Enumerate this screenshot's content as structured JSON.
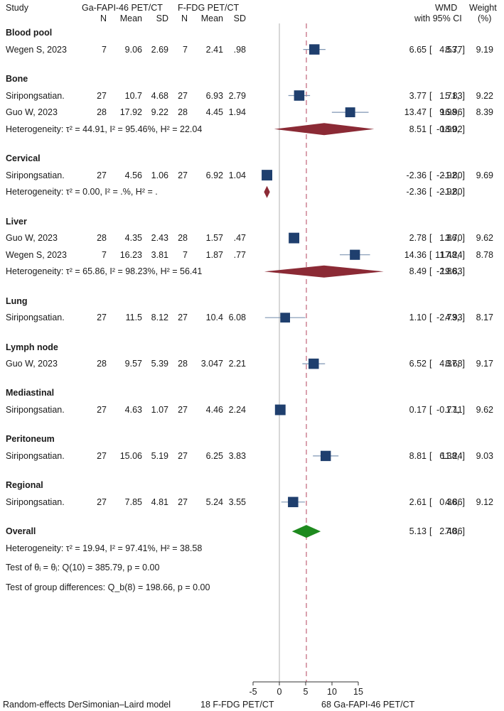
{
  "header": {
    "study": "Study",
    "fapi_group": "Ga-FAPI-46 PET/CT",
    "fdg_group": "F-FDG PET/CT",
    "n": "N",
    "mean": "Mean",
    "sd": "SD",
    "wmd": "WMD",
    "ci": "with 95% CI",
    "weight": "Weight",
    "weight_unit": "(%)"
  },
  "colors": {
    "study_square": "#1f3f6e",
    "subgroup_diamond": "#8b2a35",
    "overall_diamond": "#1e8a1e",
    "overall_line": "#d08a9a",
    "ci_line": "#7f96b3",
    "zero_line": "#b0b0b0"
  },
  "rows": [
    {
      "kind": "group",
      "label": "Blood pool"
    },
    {
      "kind": "study",
      "study": "Wegen S, 2023",
      "n1": "7",
      "mean1": "9.06",
      "sd1": "2.69",
      "n2": "7",
      "mean2": "2.41",
      "sd2": ".98",
      "est_text": "6.65",
      "lo_text": "4.53,",
      "hi_text": "8.77]",
      "weight": "9.19",
      "est": 6.65,
      "lo": 4.53,
      "hi": 8.77,
      "w": 9.19
    },
    {
      "kind": "gap"
    },
    {
      "kind": "group",
      "label": "Bone"
    },
    {
      "kind": "study",
      "study": "Siripongsatian.",
      "n1": "27",
      "mean1": "10.7",
      "sd1": "4.68",
      "n2": "27",
      "mean2": "6.93",
      "sd2": "2.79",
      "est_text": "3.77",
      "lo_text": "1.71,",
      "hi_text": "5.83]",
      "weight": "9.22",
      "est": 3.77,
      "lo": 1.71,
      "hi": 5.83,
      "w": 9.22
    },
    {
      "kind": "study",
      "study": "Guo W, 2023",
      "n1": "28",
      "mean1": "17.92",
      "sd1": "9.22",
      "n2": "28",
      "mean2": "4.45",
      "sd2": "1.94",
      "est_text": "13.47",
      "lo_text": "9.98,",
      "hi_text": "16.96]",
      "weight": "8.39",
      "est": 13.47,
      "lo": 9.98,
      "hi": 16.96,
      "w": 8.39
    },
    {
      "kind": "het",
      "text": "Heterogeneity: τ² = 44.91, I² = 95.46%, H² = 22.04",
      "est_text": "8.51",
      "lo_text": "-0.99,",
      "hi_text": "18.02]",
      "est": 8.51,
      "lo": -0.99,
      "hi": 18.02
    },
    {
      "kind": "gap"
    },
    {
      "kind": "group",
      "label": "Cervical"
    },
    {
      "kind": "study",
      "study": "Siripongsatian.",
      "n1": "27",
      "mean1": "4.56",
      "sd1": "1.06",
      "n2": "27",
      "mean2": "6.92",
      "sd2": "1.04",
      "est_text": "-2.36",
      "lo_text": "-2.92,",
      "hi_text": "-1.80]",
      "weight": "9.69",
      "est": -2.36,
      "lo": -2.92,
      "hi": -1.8,
      "w": 9.69
    },
    {
      "kind": "het",
      "text": "Heterogeneity: τ² = 0.00, I² = .%, H² = .",
      "est_text": "-2.36",
      "lo_text": "-2.92,",
      "hi_text": "-1.80]",
      "est": -2.36,
      "lo": -2.92,
      "hi": -1.8
    },
    {
      "kind": "gap"
    },
    {
      "kind": "group",
      "label": "Liver"
    },
    {
      "kind": "study",
      "study": "Guo W, 2023",
      "n1": "28",
      "mean1": "4.35",
      "sd1": "2.43",
      "n2": "28",
      "mean2": "1.57",
      "sd2": ".47",
      "est_text": "2.78",
      "lo_text": "1.86,",
      "hi_text": "3.70]",
      "weight": "9.62",
      "est": 2.78,
      "lo": 1.86,
      "hi": 3.7,
      "w": 9.62
    },
    {
      "kind": "study",
      "study": "Wegen S, 2023",
      "n1": "7",
      "mean1": "16.23",
      "sd1": "3.81",
      "n2": "7",
      "mean2": "1.87",
      "sd2": ".77",
      "est_text": "14.36",
      "lo_text": "11.48,",
      "hi_text": "17.24]",
      "weight": "8.78",
      "est": 14.36,
      "lo": 11.48,
      "hi": 17.24,
      "w": 8.78
    },
    {
      "kind": "het",
      "text": "Heterogeneity: τ² = 65.86, I² = 98.23%, H² = 56.41",
      "est_text": "8.49",
      "lo_text": "-2.86,",
      "hi_text": "19.83]",
      "est": 8.49,
      "lo": -2.86,
      "hi": 19.83
    },
    {
      "kind": "gap"
    },
    {
      "kind": "group",
      "label": "Lung"
    },
    {
      "kind": "study",
      "study": "Siripongsatian.",
      "n1": "27",
      "mean1": "11.5",
      "sd1": "8.12",
      "n2": "27",
      "mean2": "10.4",
      "sd2": "6.08",
      "est_text": "1.10",
      "lo_text": "-2.73,",
      "hi_text": "4.93]",
      "weight": "8.17",
      "est": 1.1,
      "lo": -2.73,
      "hi": 4.93,
      "w": 8.17
    },
    {
      "kind": "gap"
    },
    {
      "kind": "group",
      "label": "Lymph node"
    },
    {
      "kind": "study",
      "study": "Guo W, 2023",
      "n1": "28",
      "mean1": "9.57",
      "sd1": "5.39",
      "n2": "28",
      "mean2": "3.047",
      "sd2": "2.21",
      "est_text": "6.52",
      "lo_text": "4.37,",
      "hi_text": "8.68]",
      "weight": "9.17",
      "est": 6.52,
      "lo": 4.37,
      "hi": 8.68,
      "w": 9.17
    },
    {
      "kind": "gap"
    },
    {
      "kind": "group",
      "label": "Mediastinal"
    },
    {
      "kind": "study",
      "study": "Siripongsatian.",
      "n1": "27",
      "mean1": "4.63",
      "sd1": "1.07",
      "n2": "27",
      "mean2": "4.46",
      "sd2": "2.24",
      "est_text": "0.17",
      "lo_text": "-0.77,",
      "hi_text": "1.11]",
      "weight": "9.62",
      "est": 0.17,
      "lo": -0.77,
      "hi": 1.11,
      "w": 9.62
    },
    {
      "kind": "gap"
    },
    {
      "kind": "group",
      "label": "Peritoneum"
    },
    {
      "kind": "study",
      "study": "Siripongsatian.",
      "n1": "27",
      "mean1": "15.06",
      "sd1": "5.19",
      "n2": "27",
      "mean2": "6.25",
      "sd2": "3.83",
      "est_text": "8.81",
      "lo_text": "6.38,",
      "hi_text": "11.24]",
      "weight": "9.03",
      "est": 8.81,
      "lo": 6.38,
      "hi": 11.24,
      "w": 9.03
    },
    {
      "kind": "gap"
    },
    {
      "kind": "group",
      "label": "Regional"
    },
    {
      "kind": "study",
      "study": "Siripongsatian.",
      "n1": "27",
      "mean1": "7.85",
      "sd1": "4.81",
      "n2": "27",
      "mean2": "5.24",
      "sd2": "3.55",
      "est_text": "2.61",
      "lo_text": "0.36,",
      "hi_text": "4.86]",
      "weight": "9.12",
      "est": 2.61,
      "lo": 0.36,
      "hi": 4.86,
      "w": 9.12
    },
    {
      "kind": "gap"
    },
    {
      "kind": "overall",
      "label": "Overall",
      "est_text": "5.13",
      "lo_text": "2.40,",
      "hi_text": "7.86]",
      "est": 5.13,
      "lo": 2.4,
      "hi": 7.86
    },
    {
      "kind": "note",
      "text": "Heterogeneity: τ² = 19.94, I² = 97.41%, H² = 38.58"
    },
    {
      "kind": "note",
      "text": "Test of θᵢ = θⱼ: Q(10) = 385.79, p = 0.00"
    },
    {
      "kind": "note",
      "text": "Test of group differences: Q_b(8) = 198.66, p = 0.00"
    }
  ],
  "axis": {
    "ticks": [
      -5,
      0,
      5,
      10,
      15
    ],
    "tick_labels": [
      "-5",
      "0",
      "5",
      "10",
      "15"
    ],
    "overall_line_value": 5.13,
    "null_line_value": 0
  },
  "footer": {
    "model": "Random-effects DerSimonian–Laird model",
    "left_label": "18 F-FDG PET/CT",
    "right_label": "68 Ga-FAPI-46 PET/CT"
  },
  "chart_data": {
    "type": "forest",
    "title": "",
    "xlabel": "WMD with 95% CI",
    "xlim": [
      -5,
      17
    ],
    "categories": [
      "Blood pool: Wegen S, 2023",
      "Bone: Siripongsatian.",
      "Bone: Guo W, 2023",
      "Bone subtotal",
      "Cervical: Siripongsatian.",
      "Cervical subtotal",
      "Liver: Guo W, 2023",
      "Liver: Wegen S, 2023",
      "Liver subtotal",
      "Lung: Siripongsatian.",
      "Lymph node: Guo W, 2023",
      "Mediastinal: Siripongsatian.",
      "Peritoneum: Siripongsatian.",
      "Regional: Siripongsatian.",
      "Overall"
    ],
    "series": [
      {
        "name": "WMD",
        "values": [
          6.65,
          3.77,
          13.47,
          8.51,
          -2.36,
          -2.36,
          2.78,
          14.36,
          8.49,
          1.1,
          6.52,
          0.17,
          8.81,
          2.61,
          5.13
        ]
      },
      {
        "name": "CI lower",
        "values": [
          4.53,
          1.71,
          9.98,
          -0.99,
          -2.92,
          -2.92,
          1.86,
          11.48,
          -2.86,
          -2.73,
          4.37,
          -0.77,
          6.38,
          0.36,
          2.4
        ]
      },
      {
        "name": "CI upper",
        "values": [
          8.77,
          5.83,
          16.96,
          18.02,
          -1.8,
          -1.8,
          3.7,
          17.24,
          19.83,
          4.93,
          8.68,
          1.11,
          11.24,
          4.86,
          7.86
        ]
      },
      {
        "name": "Weight (%)",
        "values": [
          9.19,
          9.22,
          8.39,
          null,
          9.69,
          null,
          9.62,
          8.78,
          null,
          8.17,
          9.17,
          9.62,
          9.03,
          9.12,
          null
        ]
      }
    ]
  }
}
